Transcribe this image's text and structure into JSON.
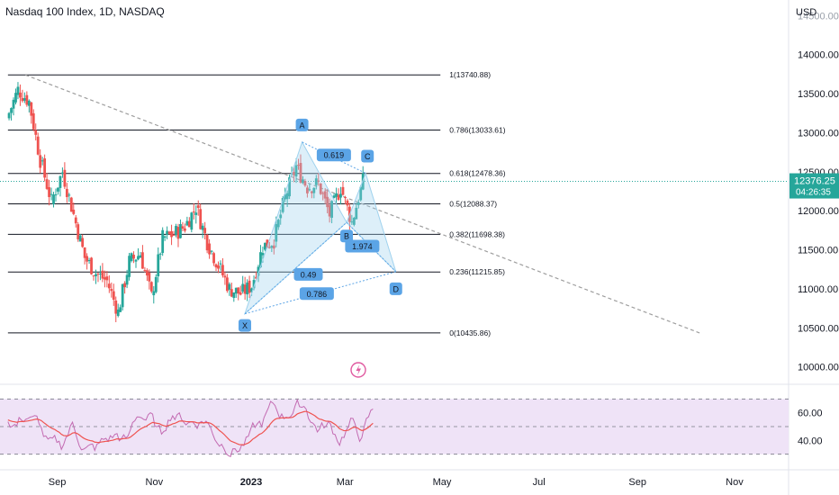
{
  "header": {
    "title": "Nasdaq 100 Index, 1D, NASDAQ",
    "currency": "USD"
  },
  "price_axis": {
    "ticks": [
      "14000.00",
      "13500.00",
      "13000.00",
      "12500.00",
      "12000.00",
      "11500.00",
      "11000.00",
      "10500.00",
      "10000.00"
    ],
    "top_cut_label": "14500.00",
    "last_price": "12376.25",
    "countdown": "04:26:35",
    "last_color": "#26a69a"
  },
  "rsi_axis": {
    "ticks": [
      "60.00",
      "40.00"
    ]
  },
  "time_axis": {
    "labels": [
      "Sep",
      "Nov",
      "2023",
      "Mar",
      "May",
      "Jul",
      "Sep",
      "Nov"
    ]
  },
  "fib_levels": [
    {
      "ratio": 1,
      "price": 13740.88,
      "label": "1(13740.88)"
    },
    {
      "ratio": 0.786,
      "price": 13033.61,
      "label": "0.786(13033.61)"
    },
    {
      "ratio": 0.618,
      "price": 12478.36,
      "label": "0.618(12478.36)"
    },
    {
      "ratio": 0.5,
      "price": 12088.37,
      "label": "0.5(12088.37)"
    },
    {
      "ratio": 0.382,
      "price": 11698.38,
      "label": "0.382(11698.38)"
    },
    {
      "ratio": 0.236,
      "price": 11215.85,
      "label": "0.236(11215.85)"
    },
    {
      "ratio": 0,
      "price": 10435.86,
      "label": "0(10435.86)"
    }
  ],
  "harmonic": {
    "points": [
      {
        "label": "X",
        "date": "2022-12-28",
        "price": 10680
      },
      {
        "label": "A",
        "date": "2023-02-02",
        "price": 12880
      },
      {
        "label": "B",
        "date": "2023-03-02",
        "price": 11850
      },
      {
        "label": "C",
        "date": "2023-03-14",
        "price": 12480
      },
      {
        "label": "D",
        "date": "2023-04-02",
        "price": 11220
      }
    ],
    "ratios": [
      "0.619",
      "1.974",
      "0.49",
      "0.786"
    ],
    "fill": "#9fd2ee",
    "badge_color": "#5ba4e6"
  },
  "colors": {
    "up": "#26a69a",
    "down": "#ef5350",
    "rsi_line": "#c36bb2",
    "rsi_ma": "#f48fb1",
    "rsi_band": "#efe3f7",
    "trendline": "#9e9e9e"
  },
  "chart_data": {
    "type": "candlestick",
    "title": "Nasdaq 100 Index, 1D, NASDAQ",
    "ylim": [
      9800,
      14700
    ],
    "x_range": [
      "2022-07-27",
      "2023-12-05"
    ],
    "ohlc_weekly_close": [
      {
        "date": "2022-08-01",
        "close": 13180
      },
      {
        "date": "2022-08-08",
        "close": 13550
      },
      {
        "date": "2022-08-15",
        "close": 13400
      },
      {
        "date": "2022-08-22",
        "close": 12650
      },
      {
        "date": "2022-08-29",
        "close": 12120
      },
      {
        "date": "2022-09-05",
        "close": 12500
      },
      {
        "date": "2022-09-12",
        "close": 11950
      },
      {
        "date": "2022-09-19",
        "close": 11400
      },
      {
        "date": "2022-09-26",
        "close": 11200
      },
      {
        "date": "2022-10-03",
        "close": 11100
      },
      {
        "date": "2022-10-10",
        "close": 10700
      },
      {
        "date": "2022-10-17",
        "close": 11350
      },
      {
        "date": "2022-10-24",
        "close": 11450
      },
      {
        "date": "2022-10-31",
        "close": 10900
      },
      {
        "date": "2022-11-07",
        "close": 11650
      },
      {
        "date": "2022-11-14",
        "close": 11700
      },
      {
        "date": "2022-11-21",
        "close": 11800
      },
      {
        "date": "2022-11-28",
        "close": 12050
      },
      {
        "date": "2022-12-05",
        "close": 11600
      },
      {
        "date": "2022-12-12",
        "close": 11300
      },
      {
        "date": "2022-12-19",
        "close": 11000
      },
      {
        "date": "2022-12-26",
        "close": 10940
      },
      {
        "date": "2023-01-02",
        "close": 11040
      },
      {
        "date": "2023-01-09",
        "close": 11540
      },
      {
        "date": "2023-01-16",
        "close": 11620
      },
      {
        "date": "2023-01-23",
        "close": 12170
      },
      {
        "date": "2023-01-30",
        "close": 12570
      },
      {
        "date": "2023-02-06",
        "close": 12300
      },
      {
        "date": "2023-02-13",
        "close": 12350
      },
      {
        "date": "2023-02-20",
        "close": 11950
      },
      {
        "date": "2023-02-27",
        "close": 12300
      },
      {
        "date": "2023-03-06",
        "close": 11850
      },
      {
        "date": "2023-03-13",
        "close": 12376
      }
    ],
    "rsi": {
      "ylim": [
        20,
        80
      ],
      "overbought": 70,
      "mid": 50,
      "oversold": 30
    }
  }
}
